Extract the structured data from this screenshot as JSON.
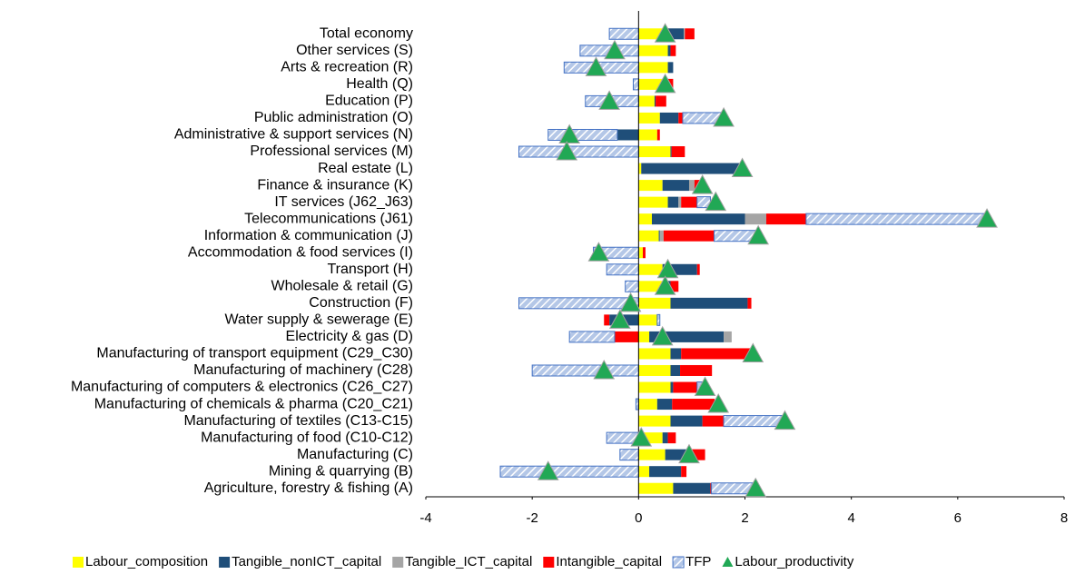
{
  "chart_data": {
    "type": "bar",
    "orientation": "horizontal",
    "stacked": true,
    "categories": [
      "Total economy",
      "Other services (S)",
      "Arts & recreation (R)",
      "Health (Q)",
      "Education (P)",
      "Public administration (O)",
      "Administrative & support services (N)",
      "Professional services (M)",
      "Real estate (L)",
      "Finance & insurance (K)",
      "IT services (J62_J63)",
      "Telecommunications (J61)",
      "Information & communication (J)",
      "Accommodation & food services (I)",
      "Transport (H)",
      "Wholesale & retail (G)",
      "Construction (F)",
      "Water supply & sewerage (E)",
      "Electricity & gas (D)",
      "Manufacturing of transport equipment (C29_C30)",
      "Manufacturing of machinery (C28)",
      "Manufacturing of computers & electronics (C26_C27)",
      "Manufacturing of chemicals & pharma (C20_C21)",
      "Manufacturing of textiles (C13-C15)",
      "Manufacturing of food (C10-C12)",
      "Manufacturing (C)",
      "Mining & quarrying (B)",
      "Agriculture, forestry & fishing (A)"
    ],
    "series": [
      {
        "name": "Labour_composition",
        "color": "#ffff00",
        "kind": "bar",
        "values": [
          0.45,
          0.55,
          0.55,
          0.5,
          0.3,
          0.4,
          0.35,
          0.6,
          0.05,
          0.45,
          0.55,
          0.25,
          0.38,
          0.08,
          0.45,
          0.5,
          0.6,
          0.35,
          0.2,
          0.6,
          0.6,
          0.6,
          0.35,
          0.6,
          0.45,
          0.5,
          0.2,
          0.65
        ]
      },
      {
        "name": "Tangible_nonICT_capital",
        "color": "#1f4e79",
        "kind": "bar",
        "values": [
          0.4,
          0.05,
          0.1,
          0.05,
          0.02,
          0.35,
          -0.4,
          0.02,
          1.9,
          0.5,
          0.2,
          1.75,
          0.02,
          0,
          0.65,
          0.1,
          1.45,
          -0.55,
          1.4,
          0.2,
          0.18,
          0.05,
          0.28,
          0.6,
          0.1,
          0.45,
          0.6,
          0.7
        ]
      },
      {
        "name": "Tangible_ICT_capital",
        "color": "#a5a5a5",
        "kind": "bar",
        "values": [
          0.02,
          0,
          0,
          0,
          0,
          0,
          0,
          0,
          0,
          0.1,
          0.05,
          0.4,
          0.07,
          0,
          0,
          0,
          0,
          0,
          0.15,
          0,
          0,
          0,
          0,
          0,
          0,
          0,
          0,
          0
        ]
      },
      {
        "name": "Intangible_capital",
        "color": "#ff0000",
        "kind": "bar",
        "values": [
          0.18,
          0.1,
          0,
          0.1,
          0.2,
          0.08,
          0.05,
          0.25,
          0,
          0.15,
          0.3,
          0.75,
          0.95,
          0.05,
          0.05,
          0.15,
          0.07,
          -0.1,
          -0.45,
          1.3,
          0.6,
          0.45,
          0.8,
          0.4,
          0.15,
          0.3,
          0.1,
          0.02
        ]
      },
      {
        "name": "TFP",
        "color": "#b4c7e7",
        "pattern": "hatch",
        "kind": "bar",
        "values": [
          -0.55,
          -1.1,
          -1.4,
          -0.1,
          -1.0,
          0.8,
          -1.3,
          -2.25,
          0,
          0.05,
          0.25,
          3.35,
          0.85,
          -0.85,
          -0.6,
          -0.25,
          -2.25,
          0.05,
          -0.85,
          0,
          -2.0,
          0.15,
          -0.05,
          1.15,
          -0.6,
          -0.35,
          -2.6,
          0.8
        ]
      },
      {
        "name": "Labour_productivity",
        "color": "#21a855",
        "kind": "marker",
        "values": [
          0.5,
          -0.45,
          -0.8,
          0.5,
          -0.55,
          1.6,
          -1.3,
          -1.35,
          1.95,
          1.2,
          1.45,
          6.55,
          2.25,
          -0.75,
          0.55,
          0.5,
          -0.15,
          -0.35,
          0.45,
          2.15,
          -0.65,
          1.25,
          1.5,
          2.75,
          0.05,
          0.95,
          -1.7,
          2.2
        ]
      }
    ],
    "xlim": [
      -4,
      8
    ],
    "xticks": [
      -4,
      -2,
      0,
      2,
      4,
      6,
      8
    ],
    "grid": false,
    "legend": "bottom"
  }
}
